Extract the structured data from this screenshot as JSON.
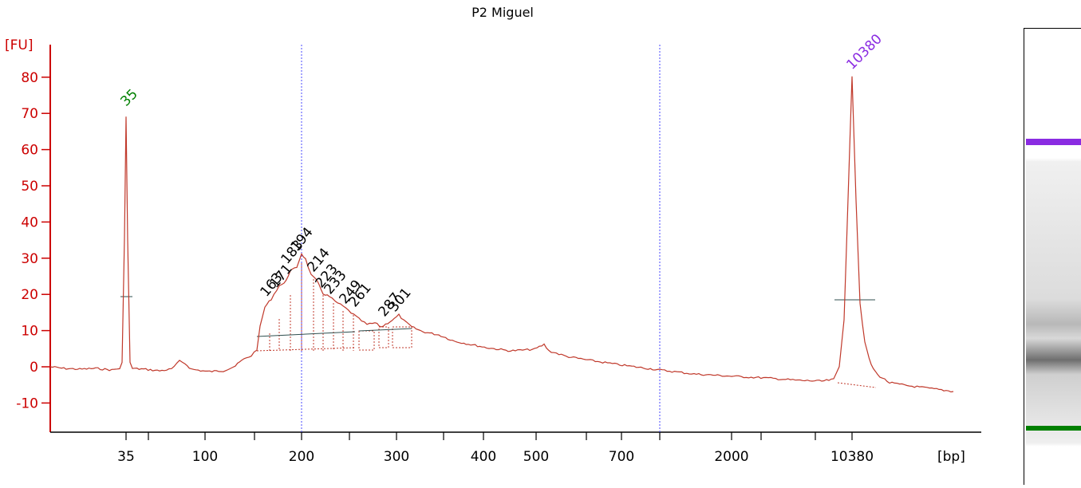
{
  "chart_data": {
    "type": "line",
    "title": "P2 Miguel",
    "ylabel": "[FU]",
    "xlabel": "[bp]",
    "ylim": [
      -18,
      90
    ],
    "yticks": [
      -10,
      0,
      10,
      20,
      30,
      40,
      50,
      60,
      70,
      80
    ],
    "xtick_labels": [
      "35",
      "100",
      "200",
      "300",
      "400",
      "500",
      "700",
      "2000",
      "10380"
    ],
    "markers": [
      {
        "label": "35",
        "color": "#008000"
      },
      {
        "label": "10380",
        "color": "#8a2be2"
      }
    ],
    "peak_labels": [
      "163",
      "171",
      "183",
      "194",
      "214",
      "223",
      "233",
      "249",
      "261",
      "287",
      "301"
    ],
    "series": [
      {
        "color": "#c0392b",
        "x": [
          "35",
          "100",
          "200",
          "300",
          "400",
          "500",
          "700",
          "2000",
          "10380"
        ],
        "y": [
          69,
          -1,
          33,
          14,
          4,
          5,
          0,
          -4,
          80
        ]
      }
    ],
    "colors": {
      "trace": "#c0392b",
      "axis": "#cc0000",
      "marker_low": "#008000",
      "marker_high": "#8a2be2",
      "guide": "#4a4aff"
    }
  }
}
